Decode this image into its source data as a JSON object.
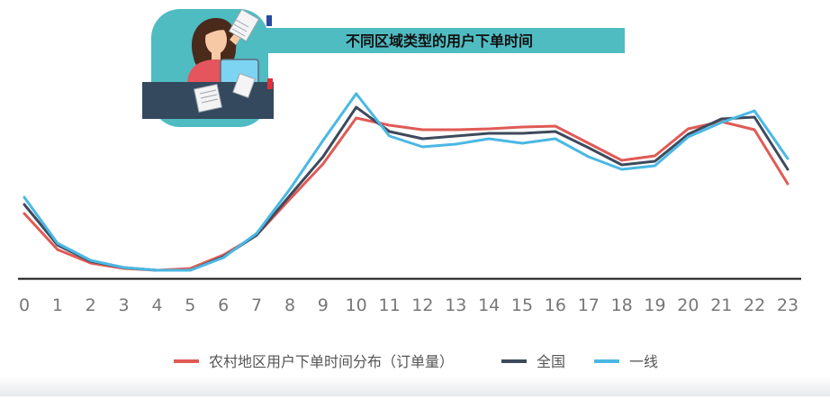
{
  "chart_data": {
    "type": "line",
    "title": "不同区域类型的用户下单时间",
    "x": [
      "0",
      "1",
      "2",
      "3",
      "4",
      "5",
      "6",
      "7",
      "8",
      "9",
      "10",
      "11",
      "12",
      "13",
      "14",
      "15",
      "16",
      "17",
      "18",
      "19",
      "20",
      "21",
      "22",
      "23"
    ],
    "series": [
      {
        "name": "农村地区用户下单时间分布（订单量）",
        "color": "#e05a55",
        "values": [
          72,
          32,
          17,
          11,
          9,
          11,
          26,
          48,
          88,
          127,
          178,
          170,
          165,
          165,
          166,
          168,
          169,
          150,
          131,
          136,
          166,
          174,
          165,
          105
        ]
      },
      {
        "name": "全国",
        "color": "#3e4a5c",
        "values": [
          82,
          37,
          19,
          12,
          9,
          9,
          24,
          48,
          92,
          135,
          190,
          163,
          155,
          158,
          161,
          161,
          163,
          145,
          126,
          130,
          160,
          177,
          179,
          121
        ]
      },
      {
        "name": "一线",
        "color": "#4ab8e3",
        "values": [
          90,
          39,
          20,
          12,
          9,
          9,
          23,
          50,
          99,
          153,
          205,
          158,
          146,
          149,
          155,
          150,
          155,
          135,
          121,
          125,
          157,
          173,
          186,
          133
        ]
      }
    ],
    "ylim": [
      0,
      230
    ],
    "grid": false,
    "legend_position": "bottom-center"
  },
  "colors": {
    "banner": "#4fbcc2",
    "desk": "#34495e",
    "skin": "#f7c9a5",
    "shirt": "#e5555d",
    "hair": "#4a2a1a",
    "paper": "#f4f4f4",
    "monitor": "#7cd3f2",
    "axis": "#111111",
    "tick_text": "#777777"
  }
}
